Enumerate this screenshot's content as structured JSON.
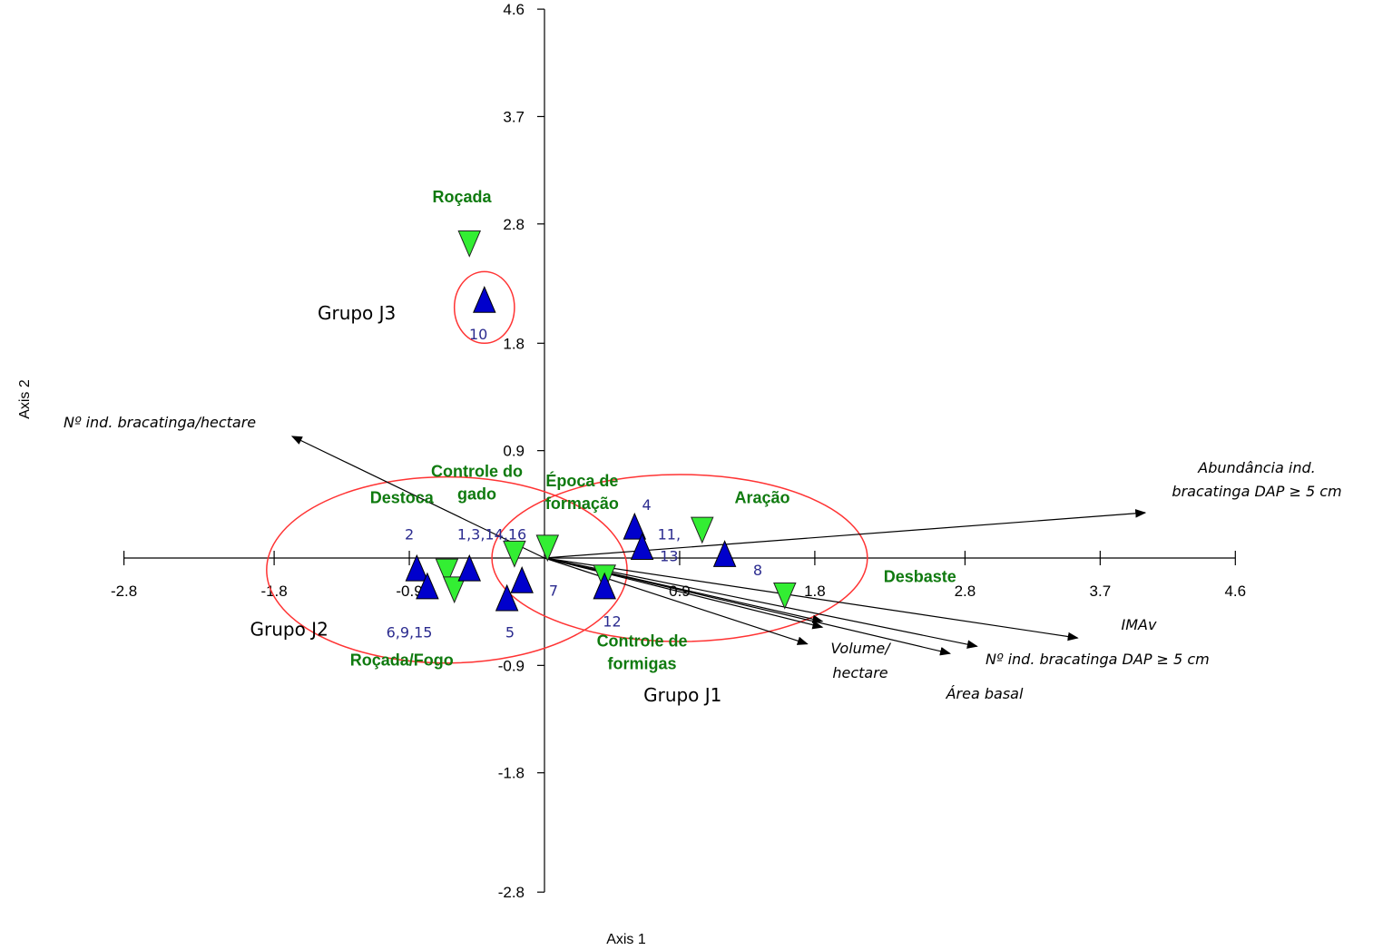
{
  "chart_data": {
    "type": "scatter",
    "xlabel": "Axis 1",
    "ylabel": "Axis 2",
    "xlim": [
      -2.8,
      4.6
    ],
    "ylim": [
      -2.8,
      4.6
    ],
    "x_ticks": [
      "-2.8",
      "-1.8",
      "-0.9",
      "0.9",
      "1.8",
      "2.8",
      "3.7",
      "4.6"
    ],
    "y_ticks": [
      "4.6",
      "3.7",
      "2.8",
      "1.8",
      "0.9",
      "-0.9",
      "-1.8",
      "-2.8"
    ],
    "sites": [
      {
        "x": -0.85,
        "y": -0.1
      },
      {
        "x": -0.78,
        "y": -0.25
      },
      {
        "x": -0.5,
        "y": -0.1
      },
      {
        "x": -0.25,
        "y": -0.35
      },
      {
        "x": -0.15,
        "y": -0.2
      },
      {
        "x": 0.4,
        "y": -0.25
      },
      {
        "x": 0.6,
        "y": 0.25
      },
      {
        "x": 0.65,
        "y": 0.08
      },
      {
        "x": 1.2,
        "y": 0.02
      },
      {
        "x": -0.4,
        "y": 2.15
      }
    ],
    "site_labels": [
      {
        "text": "2",
        "x": -0.9,
        "y": 0.2
      },
      {
        "text": "1,3,14,16",
        "x": -0.35,
        "y": 0.2
      },
      {
        "text": "6,9,15",
        "x": -0.9,
        "y": -0.62
      },
      {
        "text": "5",
        "x": -0.23,
        "y": -0.62
      },
      {
        "text": "7",
        "x": 0.06,
        "y": -0.27
      },
      {
        "text": "12",
        "x": 0.45,
        "y": -0.53
      },
      {
        "text": "4",
        "x": 0.68,
        "y": 0.45
      },
      {
        "text": "11,",
        "x": 0.83,
        "y": 0.2
      },
      {
        "text": "13",
        "x": 0.83,
        "y": 0.02
      },
      {
        "text": "8",
        "x": 1.42,
        "y": -0.1
      },
      {
        "text": "10",
        "x": -0.44,
        "y": 1.88
      }
    ],
    "environmental": [
      {
        "name": "Roçada",
        "x": -0.5,
        "y": 2.65,
        "label_x": -0.55,
        "label_y": 2.98
      },
      {
        "name": "Controle do gado",
        "x": -0.2,
        "y": 0.05,
        "label_x": -0.45,
        "label_y": 0.68
      },
      {
        "name": "Destoca",
        "x": -0.65,
        "y": -0.1,
        "label_x": -0.95,
        "label_y": 0.46
      },
      {
        "name": "Roçada/Fogo",
        "x": -0.6,
        "y": -0.25,
        "label_x": -0.95,
        "label_y": -0.9
      },
      {
        "name": "Época de formação",
        "x": 0.02,
        "y": 0.1,
        "label_x": 0.25,
        "label_y": 0.6
      },
      {
        "name": "Aração",
        "x": 1.05,
        "y": 0.25,
        "label_x": 1.45,
        "label_y": 0.46
      },
      {
        "name": "Desbaste",
        "x": 1.6,
        "y": -0.3,
        "label_x": 2.5,
        "label_y": -0.2
      },
      {
        "name": "Controle de formigas",
        "x": 0.4,
        "y": -0.15,
        "label_x": 0.65,
        "label_y": -0.74
      }
    ],
    "vectors": [
      {
        "name": "Nº ind. bracatinga/hectare",
        "x": -1.68,
        "y": 1.02
      },
      {
        "name": "Abundância ind. bracatinga DAP ≥ 5 cm",
        "x": 4.0,
        "y": 0.38
      },
      {
        "name": "IMAv",
        "x": 3.55,
        "y": -0.67
      },
      {
        "name": "Volume/ hectare",
        "x": 1.75,
        "y": -0.72
      },
      {
        "name": "Nº ind. bracatinga DAP ≥ 5 cm",
        "x": 2.88,
        "y": -0.74
      },
      {
        "name": "Área basal",
        "x": 2.7,
        "y": -0.8
      },
      {
        "name": "",
        "x": 1.85,
        "y": -0.53
      },
      {
        "name": "",
        "x": 1.85,
        "y": -0.58
      }
    ],
    "groups": [
      {
        "name": "Grupo J1",
        "cx": 0.9,
        "cy": 0.0,
        "rx": 1.25,
        "ry": 0.7,
        "label_x": 0.92,
        "label_y": -1.2
      },
      {
        "name": "Grupo J2",
        "cx": -0.65,
        "cy": -0.1,
        "rx": 1.2,
        "ry": 0.78,
        "label_x": -1.7,
        "label_y": -0.65
      },
      {
        "name": "Grupo J3",
        "cx": -0.4,
        "cy": 2.1,
        "rx": 0.2,
        "ry": 0.3,
        "label_x": -1.25,
        "label_y": 2.0
      }
    ],
    "colors": {
      "site": "#0000cc",
      "environmental": "#33ee33",
      "group_ellipse": "#ff3333",
      "env_label": "#0f7a0f",
      "site_label": "#2b2b8f"
    }
  }
}
